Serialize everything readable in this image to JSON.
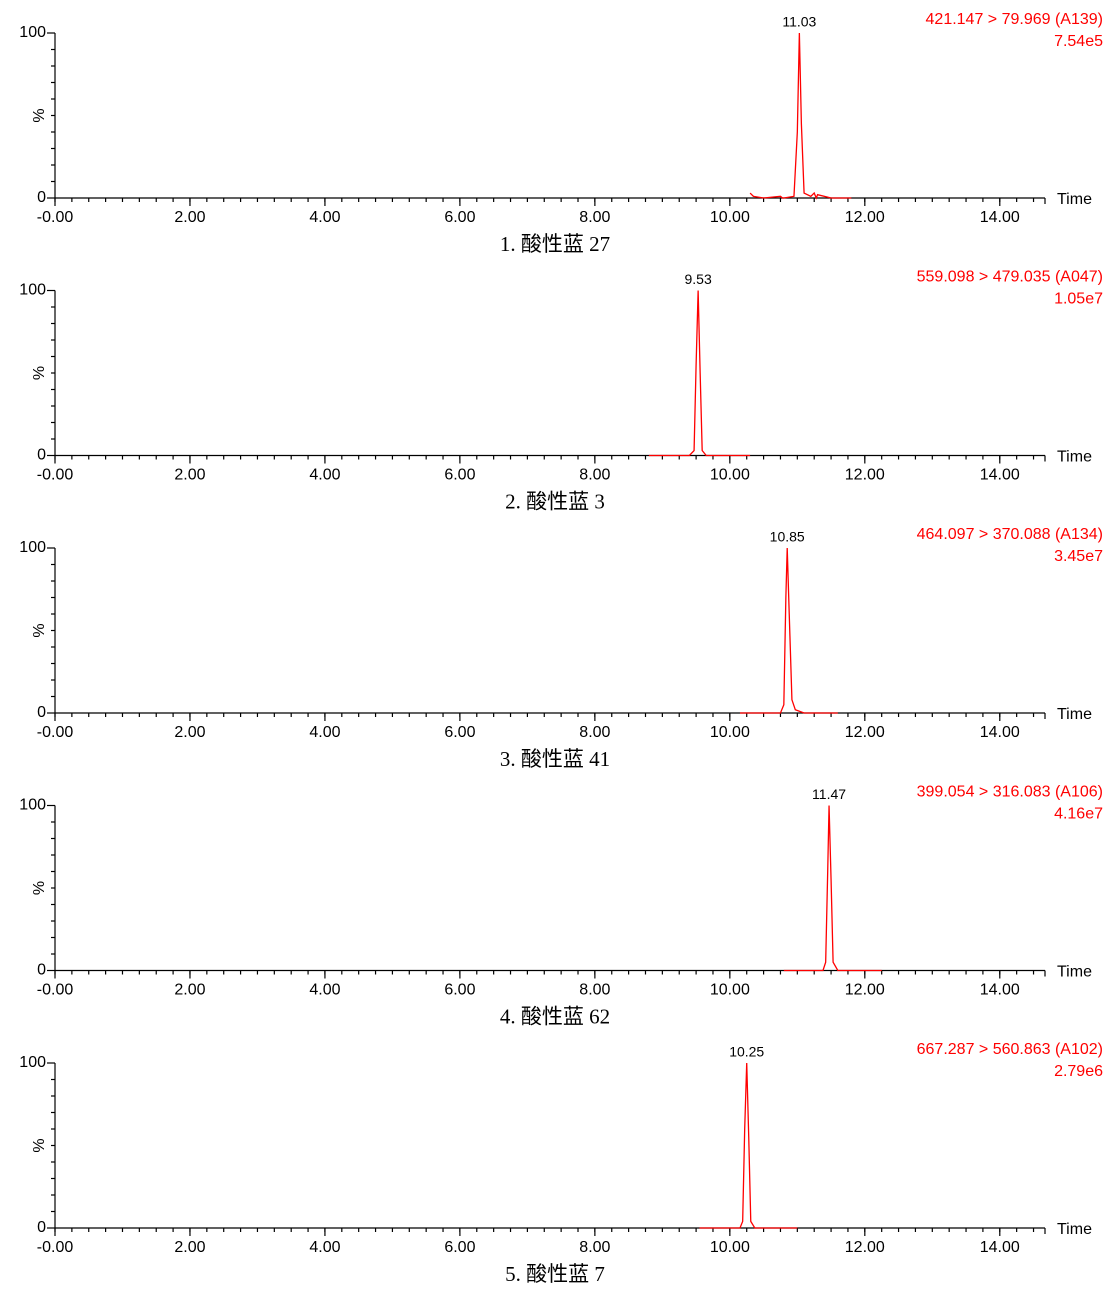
{
  "chart_data": [
    {
      "type": "line",
      "title": "1. 酸性蓝 27",
      "transition": "421.147 > 79.969 (A139)",
      "intensity": "7.54e5",
      "peak_label": 11.03,
      "x_label": "Time",
      "y_label": "%",
      "xlim": [
        0,
        14.67
      ],
      "ylim": [
        0,
        100
      ],
      "xticks": [
        {
          "value": 0,
          "label": "-0.00"
        },
        {
          "value": 2,
          "label": "2.00"
        },
        {
          "value": 4,
          "label": "4.00"
        },
        {
          "value": 6,
          "label": "6.00"
        },
        {
          "value": 8,
          "label": "8.00"
        },
        {
          "value": 10,
          "label": "10.00"
        },
        {
          "value": 12,
          "label": "12.00"
        },
        {
          "value": 14,
          "label": "14.00"
        }
      ],
      "yticks": [
        0,
        100
      ],
      "series": [
        {
          "color": "#ff0000",
          "x": [
            10.3,
            10.35,
            10.5,
            10.75,
            10.78,
            10.8,
            10.95,
            11.0,
            11.03,
            11.06,
            11.1,
            11.2,
            11.25,
            11.28,
            11.3,
            11.5,
            11.8
          ],
          "values": [
            3,
            1,
            0,
            1,
            0,
            0,
            1,
            40,
            100,
            45,
            3,
            1,
            3,
            0,
            2,
            0,
            0
          ]
        }
      ]
    },
    {
      "type": "line",
      "title": "2. 酸性蓝 3",
      "transition": "559.098 > 479.035 (A047)",
      "intensity": "1.05e7",
      "peak_label": 9.53,
      "x_label": "Time",
      "y_label": "%",
      "xlim": [
        0,
        14.67
      ],
      "ylim": [
        0,
        100
      ],
      "xticks": [
        {
          "value": 0,
          "label": "-0.00"
        },
        {
          "value": 2,
          "label": "2.00"
        },
        {
          "value": 4,
          "label": "4.00"
        },
        {
          "value": 6,
          "label": "6.00"
        },
        {
          "value": 8,
          "label": "8.00"
        },
        {
          "value": 10,
          "label": "10.00"
        },
        {
          "value": 12,
          "label": "12.00"
        },
        {
          "value": 14,
          "label": "14.00"
        }
      ],
      "yticks": [
        0,
        100
      ],
      "series": [
        {
          "color": "#ff0000",
          "x": [
            8.8,
            9.4,
            9.47,
            9.5,
            9.53,
            9.56,
            9.59,
            9.65,
            10.3
          ],
          "values": [
            0,
            0,
            3,
            55,
            100,
            50,
            3,
            0,
            0
          ]
        }
      ]
    },
    {
      "type": "line",
      "title": "3. 酸性蓝 41",
      "transition": "464.097 > 370.088 (A134)",
      "intensity": "3.45e7",
      "peak_label": 10.85,
      "x_label": "Time",
      "y_label": "%",
      "xlim": [
        0,
        14.67
      ],
      "ylim": [
        0,
        100
      ],
      "xticks": [
        {
          "value": 0,
          "label": "-0.00"
        },
        {
          "value": 2,
          "label": "2.00"
        },
        {
          "value": 4,
          "label": "4.00"
        },
        {
          "value": 6,
          "label": "6.00"
        },
        {
          "value": 8,
          "label": "8.00"
        },
        {
          "value": 10,
          "label": "10.00"
        },
        {
          "value": 12,
          "label": "12.00"
        },
        {
          "value": 14,
          "label": "14.00"
        }
      ],
      "yticks": [
        0,
        100
      ],
      "series": [
        {
          "color": "#ff0000",
          "x": [
            10.15,
            10.75,
            10.8,
            10.83,
            10.85,
            10.88,
            10.92,
            10.97,
            11.1,
            11.6
          ],
          "values": [
            0,
            0,
            5,
            70,
            100,
            60,
            8,
            2,
            0,
            0
          ]
        }
      ]
    },
    {
      "type": "line",
      "title": "4. 酸性蓝 62",
      "transition": "399.054 > 316.083 (A106)",
      "intensity": "4.16e7",
      "peak_label": 11.47,
      "x_label": "Time",
      "y_label": "%",
      "xlim": [
        0,
        14.67
      ],
      "ylim": [
        0,
        100
      ],
      "xticks": [
        {
          "value": 0,
          "label": "-0.00"
        },
        {
          "value": 2,
          "label": "2.00"
        },
        {
          "value": 4,
          "label": "4.00"
        },
        {
          "value": 6,
          "label": "6.00"
        },
        {
          "value": 8,
          "label": "8.00"
        },
        {
          "value": 10,
          "label": "10.00"
        },
        {
          "value": 12,
          "label": "12.00"
        },
        {
          "value": 14,
          "label": "14.00"
        }
      ],
      "yticks": [
        0,
        100
      ],
      "series": [
        {
          "color": "#ff0000",
          "x": [
            10.8,
            11.38,
            11.42,
            11.45,
            11.47,
            11.5,
            11.53,
            11.6,
            12.25
          ],
          "values": [
            0,
            0,
            5,
            60,
            100,
            55,
            5,
            0,
            0
          ]
        }
      ]
    },
    {
      "type": "line",
      "title": "5. 酸性蓝 7",
      "transition": "667.287 > 560.863 (A102)",
      "intensity": "2.79e6",
      "peak_label": 10.25,
      "x_label": "Time",
      "y_label": "%",
      "xlim": [
        0,
        14.67
      ],
      "ylim": [
        0,
        100
      ],
      "xticks": [
        {
          "value": 0,
          "label": "-0.00"
        },
        {
          "value": 2,
          "label": "2.00"
        },
        {
          "value": 4,
          "label": "4.00"
        },
        {
          "value": 6,
          "label": "6.00"
        },
        {
          "value": 8,
          "label": "8.00"
        },
        {
          "value": 10,
          "label": "10.00"
        },
        {
          "value": 12,
          "label": "12.00"
        },
        {
          "value": 14,
          "label": "14.00"
        }
      ],
      "yticks": [
        0,
        100
      ],
      "series": [
        {
          "color": "#ff0000",
          "x": [
            9.55,
            10.15,
            10.19,
            10.22,
            10.25,
            10.28,
            10.31,
            10.37,
            11.0
          ],
          "values": [
            0,
            0,
            4,
            60,
            100,
            55,
            4,
            0,
            0
          ]
        }
      ]
    }
  ]
}
